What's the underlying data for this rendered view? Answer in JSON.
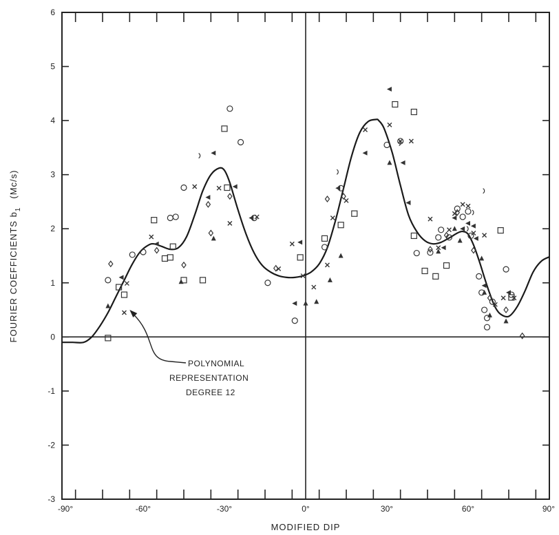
{
  "chart_data": {
    "type": "scatter",
    "xlabel": "MODIFIED DIP",
    "ylabel": "FOURIER COEFFICIENTS b",
    "ylabel_sub": "1",
    "ylabel_unit": "(Mc/s)",
    "xlim": [
      -90,
      90
    ],
    "ylim": [
      -3,
      6
    ],
    "x_ticks": [
      -90,
      -60,
      -30,
      0,
      30,
      60,
      90
    ],
    "x_tick_labels": [
      "-90°",
      "-60°",
      "-30°",
      "0°",
      "30°",
      "60°",
      "90°"
    ],
    "y_ticks": [
      -3,
      -2,
      -1,
      0,
      1,
      2,
      3,
      4,
      5,
      6
    ],
    "y_tick_labels": [
      "-3",
      "-2",
      "-1",
      "0",
      "1",
      "2",
      "3",
      "4",
      "5",
      "6"
    ],
    "grid": false,
    "annotation": {
      "lines": [
        "POLYNOMIAL",
        "REPRESENTATION",
        "DEGREE 12"
      ],
      "target": [
        -65,
        0.5
      ]
    },
    "fit_curve": {
      "x": [
        -90,
        -86,
        -82,
        -79,
        -76,
        -73,
        -70,
        -67,
        -64,
        -61,
        -58,
        -56,
        -53,
        -50,
        -47,
        -44,
        -41,
        -38,
        -35,
        -32,
        -30,
        -28,
        -25,
        -22,
        -19,
        -16,
        -13,
        -10,
        -7,
        -4,
        -1,
        2,
        5,
        8,
        11,
        14,
        17,
        20,
        23,
        26,
        27,
        29,
        32,
        35,
        38,
        41,
        44,
        47,
        50,
        53,
        56,
        58,
        60,
        62,
        64,
        66,
        68,
        70,
        72,
        75,
        78,
        81,
        84,
        87,
        90
      ],
      "y": [
        -0.1,
        -0.1,
        -0.1,
        0.0,
        0.2,
        0.45,
        0.75,
        1.05,
        1.35,
        1.58,
        1.7,
        1.72,
        1.67,
        1.62,
        1.65,
        1.85,
        2.25,
        2.7,
        3.0,
        3.12,
        3.08,
        2.85,
        2.35,
        1.9,
        1.55,
        1.32,
        1.2,
        1.13,
        1.1,
        1.1,
        1.13,
        1.2,
        1.35,
        1.65,
        2.15,
        2.75,
        3.35,
        3.78,
        3.98,
        4.02,
        4.0,
        3.85,
        3.4,
        2.8,
        2.25,
        1.95,
        1.78,
        1.72,
        1.75,
        1.83,
        1.92,
        1.95,
        1.9,
        1.7,
        1.42,
        1.1,
        0.8,
        0.55,
        0.42,
        0.38,
        0.55,
        0.85,
        1.2,
        1.4,
        1.48
      ]
    },
    "series": [
      {
        "marker": "square",
        "points": [
          [
            -73,
            -0.02
          ],
          [
            -69,
            0.92
          ],
          [
            -67,
            0.78
          ],
          [
            -56,
            2.16
          ],
          [
            -52,
            1.45
          ],
          [
            -50,
            1.47
          ],
          [
            -49,
            1.67
          ],
          [
            -45,
            1.05
          ],
          [
            -38,
            1.05
          ],
          [
            -30,
            3.85
          ],
          [
            -29,
            2.76
          ],
          [
            -2,
            1.47
          ],
          [
            7,
            1.82
          ],
          [
            13,
            2.07
          ],
          [
            18,
            2.28
          ],
          [
            33,
            4.3
          ],
          [
            40,
            4.16
          ],
          [
            40,
            1.87
          ],
          [
            44,
            1.22
          ],
          [
            48,
            1.12
          ],
          [
            52,
            1.32
          ],
          [
            72,
            1.97
          ],
          [
            76,
            0.73
          ]
        ]
      },
      {
        "marker": "circle",
        "points": [
          [
            -73,
            1.05
          ],
          [
            -64,
            1.52
          ],
          [
            -60,
            1.57
          ],
          [
            -50,
            2.2
          ],
          [
            -48,
            2.22
          ],
          [
            -45,
            2.76
          ],
          [
            -28,
            4.22
          ],
          [
            -24,
            3.6
          ],
          [
            -19,
            2.2
          ],
          [
            -14,
            1.0
          ],
          [
            -4,
            0.3
          ],
          [
            7,
            1.66
          ],
          [
            13,
            2.75
          ],
          [
            30,
            3.55
          ],
          [
            35,
            3.62
          ],
          [
            41,
            1.55
          ],
          [
            46,
            1.56
          ],
          [
            49,
            1.84
          ],
          [
            50,
            1.98
          ],
          [
            53,
            1.84
          ],
          [
            56,
            2.37
          ],
          [
            58,
            2.22
          ],
          [
            60,
            2.32
          ],
          [
            61,
            1.87
          ],
          [
            64,
            1.12
          ],
          [
            65,
            0.82
          ],
          [
            66,
            0.5
          ],
          [
            67,
            0.35
          ],
          [
            67,
            0.18
          ],
          [
            69,
            0.65
          ],
          [
            74,
            1.25
          ],
          [
            76,
            0.78
          ]
        ]
      },
      {
        "marker": "x",
        "points": [
          [
            -67,
            0.45
          ],
          [
            -66,
            0.99
          ],
          [
            -57,
            1.85
          ],
          [
            -41,
            2.78
          ],
          [
            -32,
            2.75
          ],
          [
            -28,
            2.1
          ],
          [
            -18,
            2.22
          ],
          [
            -10,
            1.26
          ],
          [
            -5,
            1.72
          ],
          [
            -1,
            1.13
          ],
          [
            3,
            0.92
          ],
          [
            8,
            1.33
          ],
          [
            10,
            2.2
          ],
          [
            15,
            2.52
          ],
          [
            22,
            3.83
          ],
          [
            31,
            3.92
          ],
          [
            35,
            3.62
          ],
          [
            39,
            3.62
          ],
          [
            46,
            2.18
          ],
          [
            49,
            1.65
          ],
          [
            53,
            1.98
          ],
          [
            55,
            2.28
          ],
          [
            58,
            2.45
          ],
          [
            60,
            2.42
          ],
          [
            62,
            1.92
          ],
          [
            66,
            1.88
          ],
          [
            70,
            0.6
          ],
          [
            73,
            0.72
          ],
          [
            77,
            0.72
          ]
        ]
      },
      {
        "marker": "triangle-up",
        "points": [
          [
            -73,
            0.57
          ],
          [
            -46,
            1.02
          ],
          [
            -34,
            1.82
          ],
          [
            0,
            0.62
          ],
          [
            4,
            0.65
          ],
          [
            9,
            1.05
          ],
          [
            13,
            1.5
          ],
          [
            31,
            3.22
          ],
          [
            49,
            1.58
          ],
          [
            55,
            2.0
          ],
          [
            57,
            1.78
          ],
          [
            65,
            1.45
          ],
          [
            66,
            0.82
          ],
          [
            68,
            0.4
          ],
          [
            74,
            0.29
          ]
        ]
      },
      {
        "marker": "triangle-left",
        "points": [
          [
            -68,
            1.1
          ],
          [
            -55,
            1.72
          ],
          [
            -36,
            2.58
          ],
          [
            -34,
            3.4
          ],
          [
            -26,
            2.78
          ],
          [
            -20,
            2.2
          ],
          [
            -4,
            0.62
          ],
          [
            -2,
            1.75
          ],
          [
            12,
            2.75
          ],
          [
            22,
            3.4
          ],
          [
            31,
            4.58
          ],
          [
            36,
            3.22
          ],
          [
            38,
            2.48
          ],
          [
            51,
            1.65
          ],
          [
            55,
            2.2
          ],
          [
            58,
            2.0
          ],
          [
            60,
            2.1
          ],
          [
            62,
            2.05
          ],
          [
            63,
            1.82
          ],
          [
            66,
            0.95
          ],
          [
            75,
            0.82
          ]
        ]
      },
      {
        "marker": "diamond",
        "points": [
          [
            -72,
            1.35
          ],
          [
            -55,
            1.6
          ],
          [
            -45,
            1.33
          ],
          [
            -36,
            2.45
          ],
          [
            -35,
            1.92
          ],
          [
            -28,
            2.6
          ],
          [
            -11,
            1.27
          ],
          [
            8,
            2.55
          ],
          [
            14,
            2.6
          ],
          [
            46,
            1.62
          ],
          [
            52,
            1.88
          ],
          [
            56,
            2.3
          ],
          [
            62,
            1.6
          ],
          [
            68,
            0.72
          ],
          [
            74,
            0.5
          ],
          [
            80,
            0.02
          ]
        ]
      },
      {
        "marker": "open-c",
        "points": [
          [
            -39,
            3.35
          ],
          [
            12,
            3.05
          ],
          [
            35,
            3.58
          ],
          [
            60,
            2.0
          ],
          [
            66,
            2.7
          ],
          [
            62,
            2.3
          ]
        ]
      }
    ]
  }
}
